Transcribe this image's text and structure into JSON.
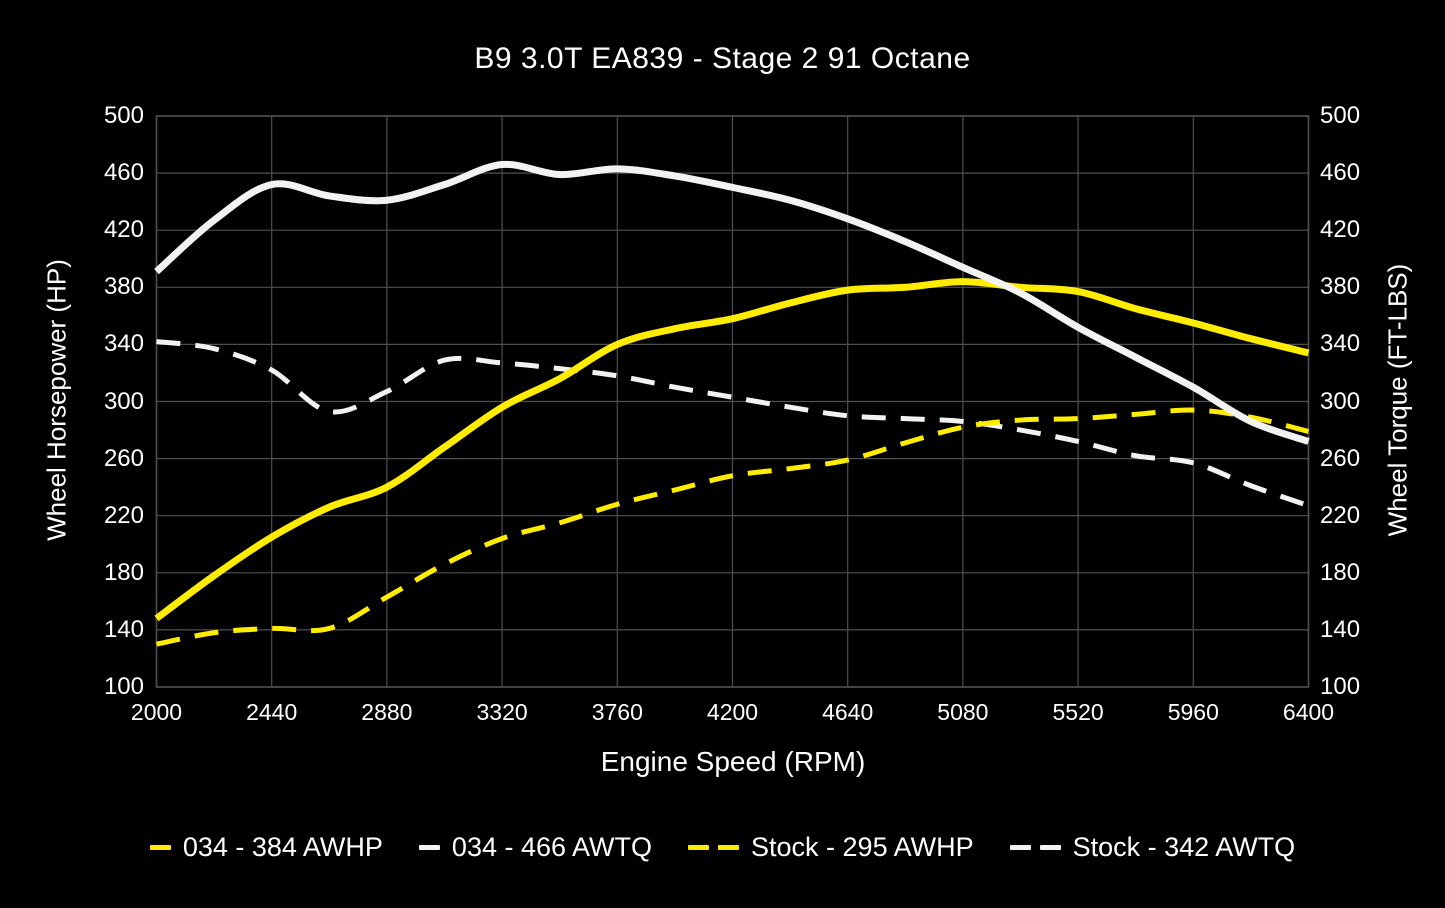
{
  "title": "B9 3.0T EA839 - Stage 2 91 Octane",
  "axes": {
    "x": {
      "label": "Engine Speed (RPM)",
      "min": 2000,
      "max": 6400,
      "ticks": [
        2000,
        2440,
        2880,
        3320,
        3760,
        4200,
        4640,
        5080,
        5520,
        5960,
        6400
      ]
    },
    "y_left": {
      "label": "Wheel Horsepower (HP)",
      "min": 100,
      "max": 500,
      "ticks": [
        100,
        140,
        180,
        220,
        260,
        300,
        340,
        380,
        420,
        460,
        500
      ]
    },
    "y_right": {
      "label": "Wheel Torque (FT-LBS)",
      "min": 100,
      "max": 500,
      "ticks": [
        100,
        140,
        180,
        220,
        260,
        300,
        340,
        380,
        420,
        460,
        500
      ]
    }
  },
  "colors": {
    "background": "#000000",
    "grid": "#4f4f4f",
    "text": "#ffffff",
    "yellow": "#ffec00",
    "white": "#f2f2f2"
  },
  "legend": {
    "items": [
      {
        "label": "034 - 384 AWHP",
        "color": "#ffec00",
        "style": "solid"
      },
      {
        "label": "034 - 466 AWTQ",
        "color": "#f2f2f2",
        "style": "solid"
      },
      {
        "label": "Stock - 295 AWHP",
        "color": "#ffec00",
        "style": "dashed"
      },
      {
        "label": "Stock - 342 AWTQ",
        "color": "#f2f2f2",
        "style": "dashed"
      }
    ]
  },
  "chart_data": {
    "type": "line",
    "title": "B9 3.0T EA839 - Stage 2 91 Octane",
    "xlabel": "Engine Speed (RPM)",
    "ylabel_left": "Wheel Horsepower (HP)",
    "ylabel_right": "Wheel Torque (FT-LBS)",
    "xlim": [
      2000,
      6400
    ],
    "ylim": [
      100,
      500
    ],
    "grid": true,
    "legend_position": "bottom",
    "x": [
      2000,
      2220,
      2440,
      2660,
      2880,
      3100,
      3320,
      3540,
      3760,
      3980,
      4200,
      4420,
      4640,
      4860,
      5080,
      5300,
      5520,
      5740,
      5960,
      6180,
      6400
    ],
    "series": [
      {
        "name": "stock-awtq",
        "legend": "Stock - 342 AWTQ",
        "peak": 342,
        "color": "#f2f2f2",
        "width": 5,
        "dash": "24 15",
        "values": [
          342,
          337,
          322,
          293,
          307,
          329,
          327,
          323,
          318,
          310,
          303,
          296,
          290,
          288,
          286,
          280,
          272,
          262,
          257,
          241,
          227
        ]
      },
      {
        "name": "stock-awhp",
        "legend": "Stock - 295 AWHP",
        "peak": 295,
        "color": "#ffec00",
        "width": 5,
        "dash": "24 15",
        "values": [
          130,
          138,
          141,
          141,
          163,
          186,
          204,
          215,
          228,
          238,
          248,
          253,
          259,
          271,
          282,
          287,
          288,
          291,
          294,
          289,
          279
        ]
      },
      {
        "name": "034-awhp",
        "legend": "034 - 384 AWHP",
        "peak": 384,
        "color": "#ffec00",
        "width": 7,
        "dash": null,
        "values": [
          148,
          178,
          205,
          226,
          240,
          268,
          296,
          316,
          340,
          351,
          358,
          369,
          378,
          380,
          384,
          380,
          377,
          365,
          355,
          344,
          334
        ]
      },
      {
        "name": "034-awtq",
        "legend": "034 - 466 AWTQ",
        "peak": 466,
        "color": "#f2f2f2",
        "width": 7,
        "dash": null,
        "values": [
          391,
          427,
          452,
          444,
          441,
          452,
          466,
          459,
          463,
          458,
          450,
          441,
          428,
          412,
          394,
          376,
          352,
          331,
          310,
          286,
          272
        ]
      }
    ]
  }
}
